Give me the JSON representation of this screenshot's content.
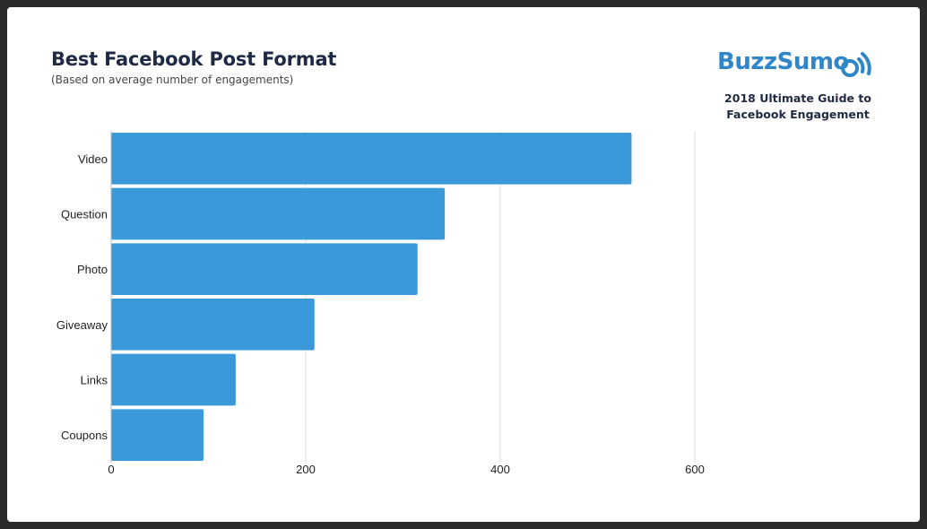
{
  "header": {
    "title": "Best Facebook Post Format",
    "subtitle": "(Based on average number of engagements)"
  },
  "brand": {
    "logo_text": "BuzzSumo",
    "logo_icon": "wifi-signal-icon",
    "guide_line1": "2018 Ultimate Guide to",
    "guide_line2": "Facebook Engagement",
    "color": "#2f86c8"
  },
  "chart_data": {
    "type": "bar",
    "orientation": "horizontal",
    "categories": [
      "Video",
      "Question",
      "Photo",
      "Giveaway",
      "Links",
      "Coupons"
    ],
    "values": [
      535,
      343,
      315,
      209,
      128,
      95
    ],
    "xlim": [
      0,
      600
    ],
    "xticks": [
      0,
      200,
      400,
      600
    ],
    "grid": true,
    "bar_color": "#3a9ad9"
  }
}
